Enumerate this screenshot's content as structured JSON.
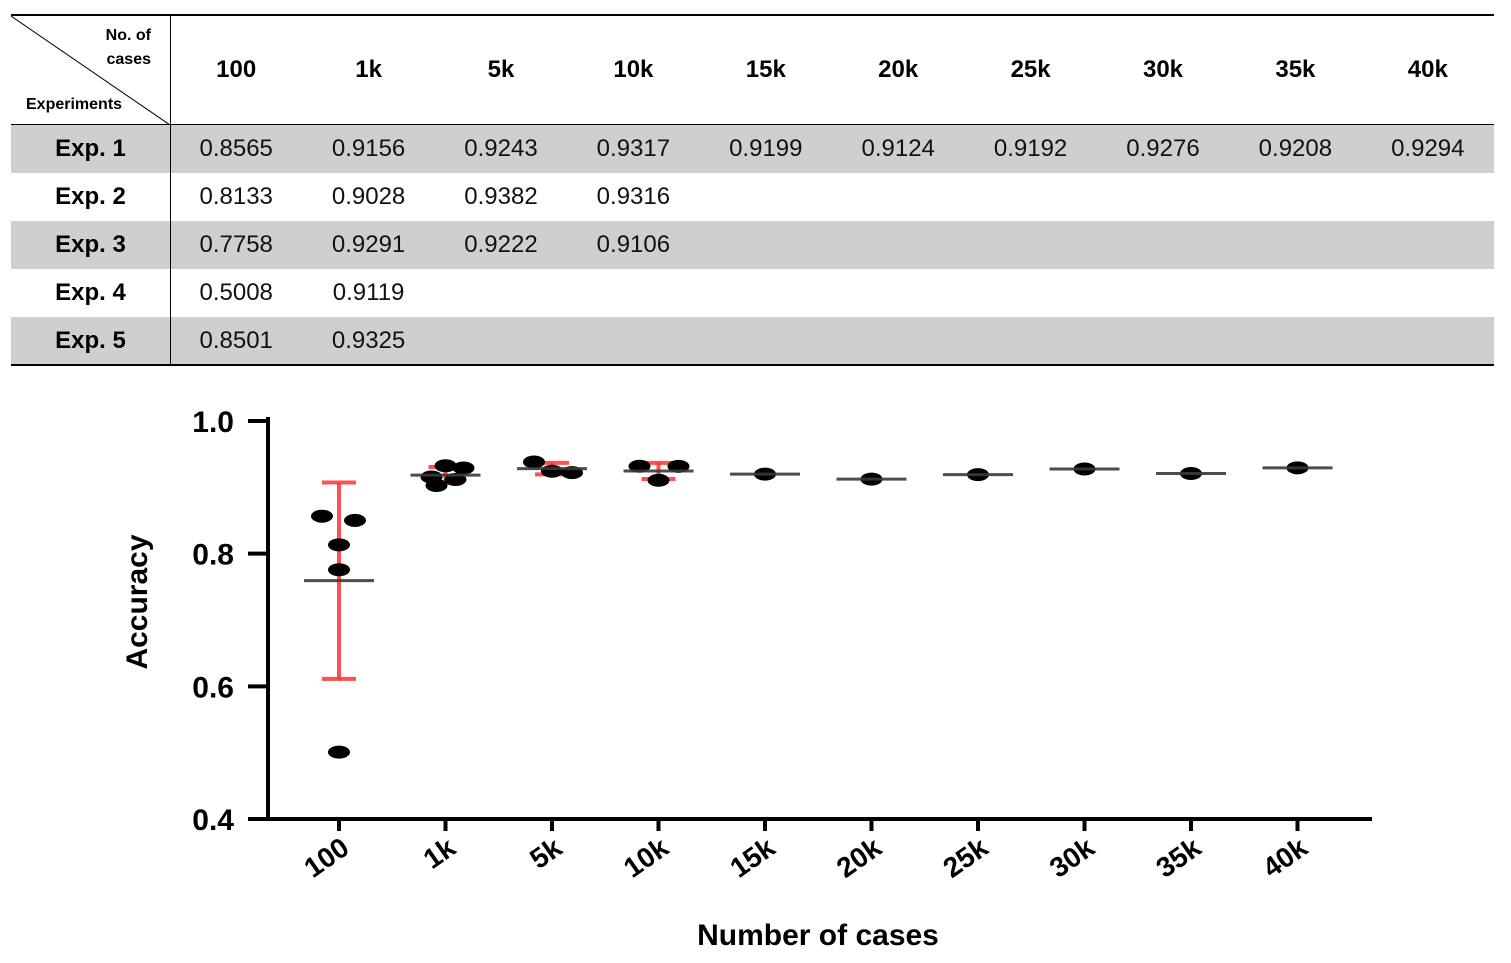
{
  "table": {
    "corner_top": "No. of cases",
    "corner_bottom": "Experiments"
  },
  "chart_data": {
    "type": "scatter",
    "categories": [
      "100",
      "1k",
      "5k",
      "10k",
      "15k",
      "20k",
      "25k",
      "30k",
      "35k",
      "40k"
    ],
    "series": [
      {
        "name": "Exp. 1",
        "values": [
          0.8565,
          0.9156,
          0.9243,
          0.9317,
          0.9199,
          0.9124,
          0.9192,
          0.9276,
          0.9208,
          0.9294
        ]
      },
      {
        "name": "Exp. 2",
        "values": [
          0.8133,
          0.9028,
          0.9382,
          0.9316,
          null,
          null,
          null,
          null,
          null,
          null
        ]
      },
      {
        "name": "Exp. 3",
        "values": [
          0.7758,
          0.9291,
          0.9222,
          0.9106,
          null,
          null,
          null,
          null,
          null,
          null
        ]
      },
      {
        "name": "Exp. 4",
        "values": [
          0.5008,
          0.9119,
          null,
          null,
          null,
          null,
          null,
          null,
          null,
          null
        ]
      },
      {
        "name": "Exp. 5",
        "values": [
          0.8501,
          0.9325,
          null,
          null,
          null,
          null,
          null,
          null,
          null,
          null
        ]
      }
    ],
    "summary": "mean line with SD error bars",
    "xlabel": "Number of cases",
    "ylabel": "Accuracy",
    "ylim": [
      0.4,
      1.0
    ],
    "yticks": [
      "0.4",
      "0.6",
      "0.8",
      "1.0"
    ],
    "grid": false,
    "colors": {
      "points": "#000000",
      "mean": "#3a3a3a",
      "errorbar": "#ff3333"
    }
  }
}
